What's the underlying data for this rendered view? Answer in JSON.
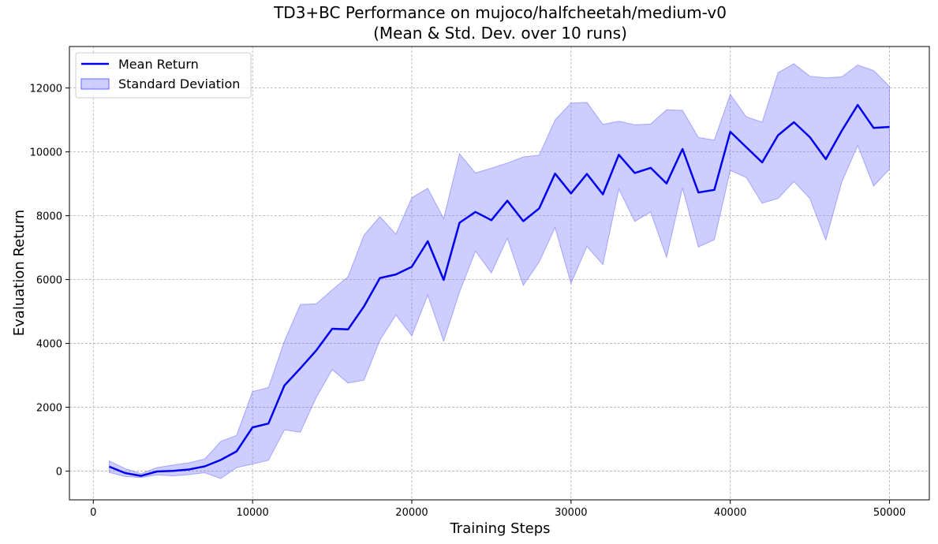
{
  "chart_data": {
    "type": "line",
    "title_line1": "TD3+BC Performance on mujoco/halfcheetah/medium-v0",
    "title_line2": "(Mean & Std. Dev. over 10 runs)",
    "xlabel": "Training Steps",
    "ylabel": "Evaluation Return",
    "xlim": [
      -1500,
      52500
    ],
    "ylim": [
      -900,
      13300
    ],
    "xticks": [
      0,
      10000,
      20000,
      30000,
      40000,
      50000
    ],
    "yticks": [
      0,
      2000,
      4000,
      6000,
      8000,
      10000,
      12000
    ],
    "grid": true,
    "legend_position": "top-left",
    "x": [
      1000,
      2000,
      3000,
      4000,
      5000,
      6000,
      7000,
      8000,
      9000,
      10000,
      11000,
      12000,
      13000,
      14000,
      15000,
      16000,
      17000,
      18000,
      19000,
      20000,
      21000,
      22000,
      23000,
      24000,
      25000,
      26000,
      27000,
      28000,
      29000,
      30000,
      31000,
      32000,
      33000,
      34000,
      35000,
      36000,
      37000,
      38000,
      39000,
      40000,
      41000,
      42000,
      43000,
      44000,
      45000,
      46000,
      47000,
      48000,
      49000,
      50000
    ],
    "series": [
      {
        "name": "Mean Return",
        "color": "#0000ee",
        "values": [
          140,
          -60,
          -150,
          -10,
          10,
          50,
          150,
          350,
          620,
          1370,
          1490,
          2680,
          3220,
          3780,
          4460,
          4440,
          5160,
          6050,
          6160,
          6400,
          7200,
          5990,
          7780,
          8120,
          7860,
          8470,
          7830,
          8230,
          9320,
          8700,
          9310,
          8670,
          9910,
          9340,
          9500,
          9010,
          10090,
          8730,
          8810,
          10630,
          10150,
          9670,
          10520,
          10930,
          10460,
          9770,
          10660,
          11470,
          10750,
          10780
        ]
      },
      {
        "name": "Standard Deviation",
        "color": "#6666ff",
        "lower": [
          -40,
          -170,
          -200,
          -120,
          -150,
          -110,
          -50,
          -230,
          110,
          220,
          340,
          1290,
          1220,
          2310,
          3180,
          2760,
          2850,
          4100,
          4890,
          4240,
          5510,
          4070,
          5610,
          6890,
          6210,
          7300,
          5820,
          6550,
          7630,
          5880,
          7040,
          6470,
          8840,
          7820,
          8120,
          6700,
          8870,
          7020,
          7250,
          9420,
          9200,
          8390,
          8540,
          9070,
          8540,
          7240,
          9050,
          10200,
          8930,
          9460
        ],
        "upper": [
          320,
          80,
          -80,
          110,
          190,
          260,
          380,
          930,
          1120,
          2490,
          2620,
          4070,
          5220,
          5240,
          5680,
          6090,
          7390,
          7970,
          7420,
          8560,
          8860,
          7910,
          9940,
          9340,
          9490,
          9650,
          9840,
          9900,
          11000,
          11530,
          11550,
          10860,
          10960,
          10850,
          10870,
          11320,
          11300,
          10450,
          10370,
          11800,
          11100,
          10930,
          12480,
          12760,
          12370,
          12320,
          12350,
          12720,
          12550,
          12050
        ]
      }
    ]
  }
}
